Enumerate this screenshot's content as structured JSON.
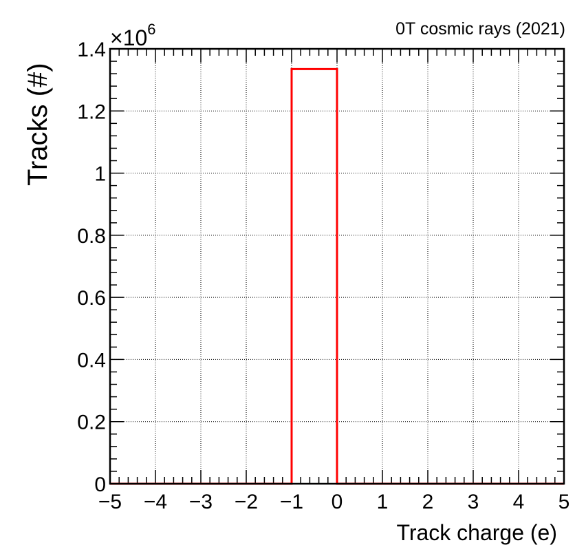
{
  "chart_data": {
    "type": "bar",
    "annotation": "0T cosmic rays (2021)",
    "xlabel": "Track charge (e)",
    "ylabel": "Tracks (#)",
    "y_multiplier_base": "×10",
    "y_multiplier_exp": "6",
    "xlim": [
      -5,
      5
    ],
    "ylim": [
      0,
      1.4
    ],
    "x_ticks": [
      -5,
      -4,
      -3,
      -2,
      -1,
      0,
      1,
      2,
      3,
      4,
      5
    ],
    "x_tick_labels": [
      "−5",
      "−4",
      "−3",
      "−2",
      "−1",
      "0",
      "1",
      "2",
      "3",
      "4",
      "5"
    ],
    "y_ticks": [
      0,
      0.2,
      0.4,
      0.6,
      0.8,
      1,
      1.2,
      1.4
    ],
    "y_tick_labels": [
      "0",
      "0.2",
      "0.4",
      "0.6",
      "0.8",
      "1",
      "1.2",
      "1.4"
    ],
    "grid": true,
    "bins": [
      {
        "x_low": -5,
        "x_high": -1,
        "value": 0
      },
      {
        "x_low": -1,
        "x_high": 0,
        "value": 1.335
      },
      {
        "x_low": 0,
        "x_high": 5,
        "value": 0
      }
    ],
    "line_color": "#ff0000"
  }
}
